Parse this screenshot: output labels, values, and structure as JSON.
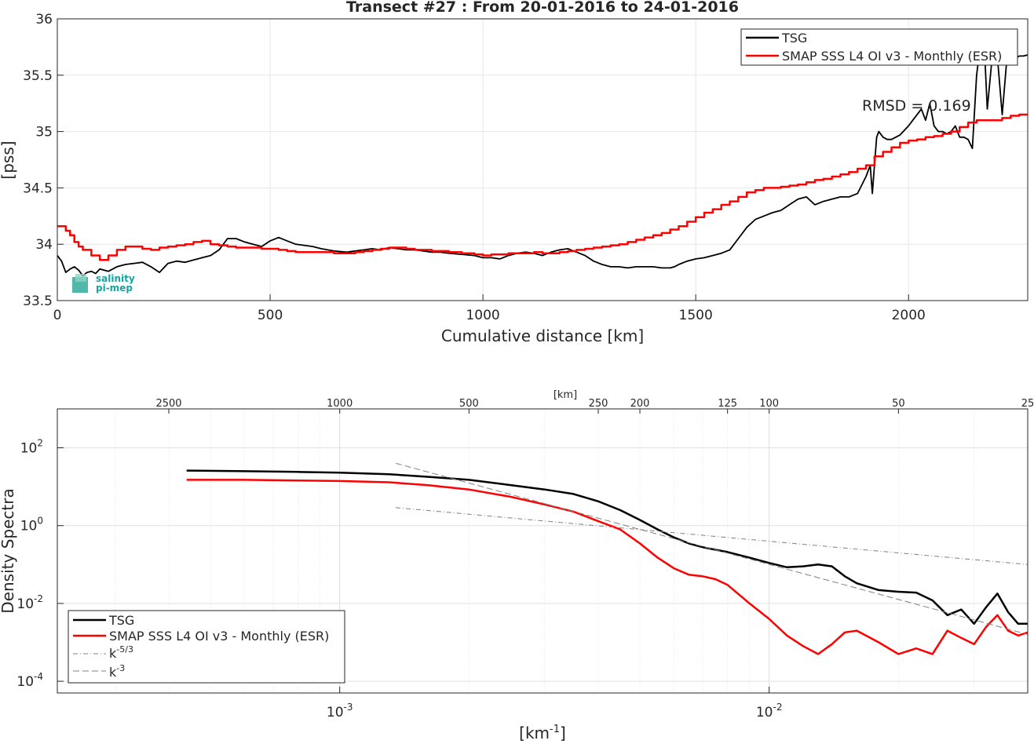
{
  "chart_data": [
    {
      "type": "line",
      "title": "Transect #27 : From 20-01-2016 to 24-01-2016",
      "xlabel": "Cumulative distance [km]",
      "ylabel": "[pss]",
      "xlim": [
        0,
        2280
      ],
      "ylim": [
        33.5,
        36
      ],
      "xticks": [
        "0",
        "500",
        "1000",
        "1500",
        "2000"
      ],
      "yticks": [
        "33.5",
        "34",
        "34.5",
        "35",
        "35.5",
        "36"
      ],
      "grid": true,
      "legend_position": "top-right",
      "annotation": "RMSD = 0.169",
      "logo_text": [
        "salinity",
        "pi-mep"
      ],
      "series": [
        {
          "name": "TSG",
          "color": "#000000",
          "x": [
            0,
            10,
            20,
            30,
            40,
            50,
            60,
            70,
            80,
            90,
            100,
            120,
            140,
            160,
            180,
            200,
            220,
            240,
            260,
            280,
            300,
            320,
            340,
            360,
            380,
            400,
            420,
            440,
            460,
            480,
            500,
            520,
            540,
            560,
            580,
            600,
            620,
            650,
            680,
            700,
            720,
            740,
            760,
            780,
            800,
            820,
            840,
            860,
            880,
            900,
            920,
            950,
            980,
            1000,
            1020,
            1040,
            1060,
            1080,
            1100,
            1120,
            1140,
            1160,
            1180,
            1200,
            1220,
            1240,
            1260,
            1280,
            1300,
            1320,
            1340,
            1360,
            1380,
            1400,
            1420,
            1440,
            1450,
            1460,
            1480,
            1500,
            1520,
            1540,
            1560,
            1580,
            1600,
            1620,
            1640,
            1660,
            1680,
            1700,
            1720,
            1740,
            1760,
            1780,
            1800,
            1820,
            1840,
            1860,
            1880,
            1900,
            1910,
            1915,
            1920,
            1925,
            1930,
            1940,
            1950,
            1960,
            1980,
            2000,
            2010,
            2020,
            2030,
            2040,
            2050,
            2060,
            2070,
            2080,
            2090,
            2100,
            2110,
            2120,
            2130,
            2140,
            2150,
            2160,
            2170,
            2180,
            2185,
            2190,
            2200,
            2210,
            2220,
            2230,
            2240,
            2250,
            2260,
            2270,
            2280
          ],
          "values": [
            33.9,
            33.85,
            33.75,
            33.78,
            33.8,
            33.77,
            33.72,
            33.75,
            33.76,
            33.74,
            33.78,
            33.76,
            33.8,
            33.82,
            33.83,
            33.84,
            33.8,
            33.75,
            33.83,
            33.85,
            33.84,
            33.86,
            33.88,
            33.9,
            33.95,
            34.05,
            34.05,
            34.02,
            34.0,
            33.98,
            34.03,
            34.06,
            34.03,
            34.0,
            33.99,
            33.98,
            33.96,
            33.94,
            33.93,
            33.94,
            33.95,
            33.96,
            33.95,
            33.97,
            33.96,
            33.95,
            33.95,
            33.94,
            33.93,
            33.93,
            33.92,
            33.91,
            33.9,
            33.88,
            33.88,
            33.87,
            33.9,
            33.92,
            33.93,
            33.92,
            33.9,
            33.93,
            33.95,
            33.96,
            33.93,
            33.9,
            33.85,
            33.82,
            33.8,
            33.8,
            33.79,
            33.8,
            33.8,
            33.8,
            33.79,
            33.79,
            33.8,
            33.82,
            33.85,
            33.87,
            33.88,
            33.9,
            33.92,
            33.95,
            34.05,
            34.15,
            34.22,
            34.25,
            34.28,
            34.3,
            34.35,
            34.4,
            34.42,
            34.35,
            34.38,
            34.4,
            34.42,
            34.42,
            34.45,
            34.6,
            34.7,
            34.45,
            34.7,
            34.95,
            35.0,
            34.95,
            34.93,
            34.93,
            34.97,
            35.05,
            35.1,
            35.15,
            35.2,
            35.1,
            35.25,
            35.05,
            35.0,
            35.0,
            34.98,
            35.0,
            35.05,
            34.95,
            34.95,
            34.93,
            34.85,
            35.5,
            35.8,
            35.6,
            35.2,
            35.4,
            35.8,
            35.6,
            35.15,
            35.6,
            35.65,
            35.65,
            35.67,
            35.67,
            35.68
          ]
        },
        {
          "name": "SMAP SSS L4 OI v3 - Monthly (ESR)",
          "color": "#ff0000",
          "x": [
            0,
            20,
            30,
            40,
            50,
            60,
            80,
            100,
            120,
            140,
            160,
            180,
            200,
            220,
            240,
            260,
            280,
            300,
            320,
            340,
            360,
            380,
            400,
            420,
            440,
            460,
            480,
            500,
            520,
            540,
            560,
            580,
            600,
            620,
            650,
            680,
            700,
            720,
            740,
            760,
            780,
            800,
            820,
            840,
            860,
            880,
            900,
            920,
            950,
            980,
            1000,
            1020,
            1040,
            1060,
            1080,
            1100,
            1120,
            1140,
            1160,
            1180,
            1200,
            1220,
            1240,
            1260,
            1280,
            1300,
            1320,
            1340,
            1360,
            1380,
            1400,
            1420,
            1440,
            1460,
            1480,
            1500,
            1520,
            1540,
            1560,
            1580,
            1600,
            1620,
            1640,
            1660,
            1680,
            1700,
            1720,
            1740,
            1760,
            1780,
            1800,
            1820,
            1840,
            1860,
            1880,
            1900,
            1920,
            1940,
            1960,
            1980,
            2000,
            2020,
            2040,
            2060,
            2080,
            2100,
            2120,
            2140,
            2160,
            2180,
            2200,
            2220,
            2240,
            2260,
            2280
          ],
          "values": [
            34.16,
            34.12,
            34.08,
            34.02,
            33.98,
            33.95,
            33.9,
            33.86,
            33.9,
            33.95,
            33.98,
            33.98,
            33.96,
            33.95,
            33.97,
            33.98,
            33.99,
            34.0,
            34.02,
            34.03,
            34.0,
            33.99,
            33.98,
            33.97,
            33.97,
            33.97,
            33.96,
            33.96,
            33.95,
            33.94,
            33.93,
            33.93,
            33.93,
            33.93,
            33.92,
            33.92,
            33.93,
            33.94,
            33.95,
            33.96,
            33.97,
            33.97,
            33.96,
            33.95,
            33.95,
            33.94,
            33.94,
            33.93,
            33.92,
            33.91,
            33.9,
            33.91,
            33.91,
            33.92,
            33.92,
            33.92,
            33.93,
            33.92,
            33.92,
            33.93,
            33.94,
            33.95,
            33.96,
            33.97,
            33.98,
            33.99,
            34.0,
            34.02,
            34.04,
            34.06,
            34.08,
            34.1,
            34.13,
            34.16,
            34.2,
            34.24,
            34.28,
            34.31,
            34.35,
            34.38,
            34.42,
            34.46,
            34.48,
            34.5,
            34.5,
            34.51,
            34.52,
            34.53,
            34.55,
            34.57,
            34.58,
            34.6,
            34.62,
            34.64,
            34.67,
            34.7,
            34.78,
            34.82,
            34.86,
            34.9,
            34.92,
            34.93,
            34.95,
            34.96,
            34.98,
            35.0,
            35.04,
            35.08,
            35.1,
            35.1,
            35.1,
            35.12,
            35.14,
            35.15,
            35.15
          ]
        }
      ]
    },
    {
      "type": "line",
      "title": "",
      "xlabel": "[km⁻¹]",
      "ylabel": "Density Spectra",
      "x_scale": "log",
      "y_scale": "log",
      "xlim": [
        0.00022,
        0.04
      ],
      "ylim": [
        5e-05,
        1000
      ],
      "xticks": [
        "10⁻³",
        "10⁻²"
      ],
      "yticks": [
        "10⁻⁴",
        "10⁻²",
        "10⁰",
        "10²"
      ],
      "top_axis_title": "[km]",
      "top_axis_ticks": [
        "2500",
        "1000",
        "500",
        "250",
        "200",
        "125",
        "100",
        "50",
        "25"
      ],
      "grid": true,
      "legend_position": "bottom-left",
      "series": [
        {
          "name": "TSG",
          "color": "#000000",
          "x": [
            0.00044,
            0.0006,
            0.0008,
            0.001,
            0.0013,
            0.0016,
            0.002,
            0.0025,
            0.003,
            0.0035,
            0.004,
            0.0045,
            0.005,
            0.0055,
            0.006,
            0.0065,
            0.007,
            0.0075,
            0.008,
            0.009,
            0.01,
            0.011,
            0.012,
            0.013,
            0.014,
            0.015,
            0.016,
            0.018,
            0.02,
            0.022,
            0.024,
            0.026,
            0.028,
            0.03,
            0.032,
            0.034,
            0.036,
            0.038,
            0.04
          ],
          "values": [
            26,
            25,
            24,
            23,
            21,
            18,
            15,
            11,
            8.5,
            6.5,
            4.2,
            2.5,
            1.4,
            0.8,
            0.5,
            0.35,
            0.28,
            0.24,
            0.21,
            0.15,
            0.11,
            0.085,
            0.09,
            0.1,
            0.09,
            0.05,
            0.033,
            0.022,
            0.02,
            0.019,
            0.012,
            0.005,
            0.007,
            0.003,
            0.008,
            0.018,
            0.006,
            0.003,
            0.003
          ]
        },
        {
          "name": "SMAP SSS L4 OI v3 - Monthly (ESR)",
          "color": "#ff0000",
          "x": [
            0.00044,
            0.0006,
            0.0008,
            0.001,
            0.0013,
            0.0016,
            0.002,
            0.0025,
            0.003,
            0.0035,
            0.004,
            0.0045,
            0.005,
            0.0055,
            0.006,
            0.0065,
            0.007,
            0.0075,
            0.008,
            0.009,
            0.01,
            0.011,
            0.012,
            0.013,
            0.014,
            0.015,
            0.016,
            0.018,
            0.02,
            0.022,
            0.024,
            0.026,
            0.028,
            0.03,
            0.032,
            0.034,
            0.036,
            0.038,
            0.04
          ],
          "values": [
            15,
            15,
            14.5,
            14,
            13,
            11,
            8.5,
            5.5,
            3.5,
            2.3,
            1.3,
            0.8,
            0.35,
            0.15,
            0.08,
            0.055,
            0.05,
            0.042,
            0.03,
            0.01,
            0.004,
            0.0015,
            0.0008,
            0.0005,
            0.0009,
            0.0018,
            0.002,
            0.001,
            0.0005,
            0.0007,
            0.0005,
            0.002,
            0.0013,
            0.0009,
            0.0025,
            0.005,
            0.002,
            0.0015,
            0.0018
          ]
        },
        {
          "name": "k⁻⁵ᐟ³",
          "color": "#808080",
          "style": "dash-dot",
          "x": [
            0.00135,
            0.04
          ],
          "values": [
            2.9,
            0.1
          ]
        },
        {
          "name": "k⁻³",
          "color": "#808080",
          "style": "dash",
          "x": [
            0.00135,
            0.04
          ],
          "values": [
            40,
            0.0016
          ]
        }
      ]
    }
  ],
  "legend1": {
    "items": [
      {
        "label": "TSG",
        "color": "#000000"
      },
      {
        "label": "SMAP SSS L4 OI v3 - Monthly (ESR)",
        "color": "#ff0000"
      }
    ]
  },
  "legend2": {
    "items": [
      {
        "label": "TSG",
        "color": "#000000"
      },
      {
        "label": "SMAP SSS L4 OI v3 - Monthly (ESR)",
        "color": "#ff0000"
      },
      {
        "label_base": "k",
        "label_sup": "-5/3",
        "color": "#808080"
      },
      {
        "label_base": "k",
        "label_sup": "-3",
        "color": "#808080"
      }
    ]
  }
}
